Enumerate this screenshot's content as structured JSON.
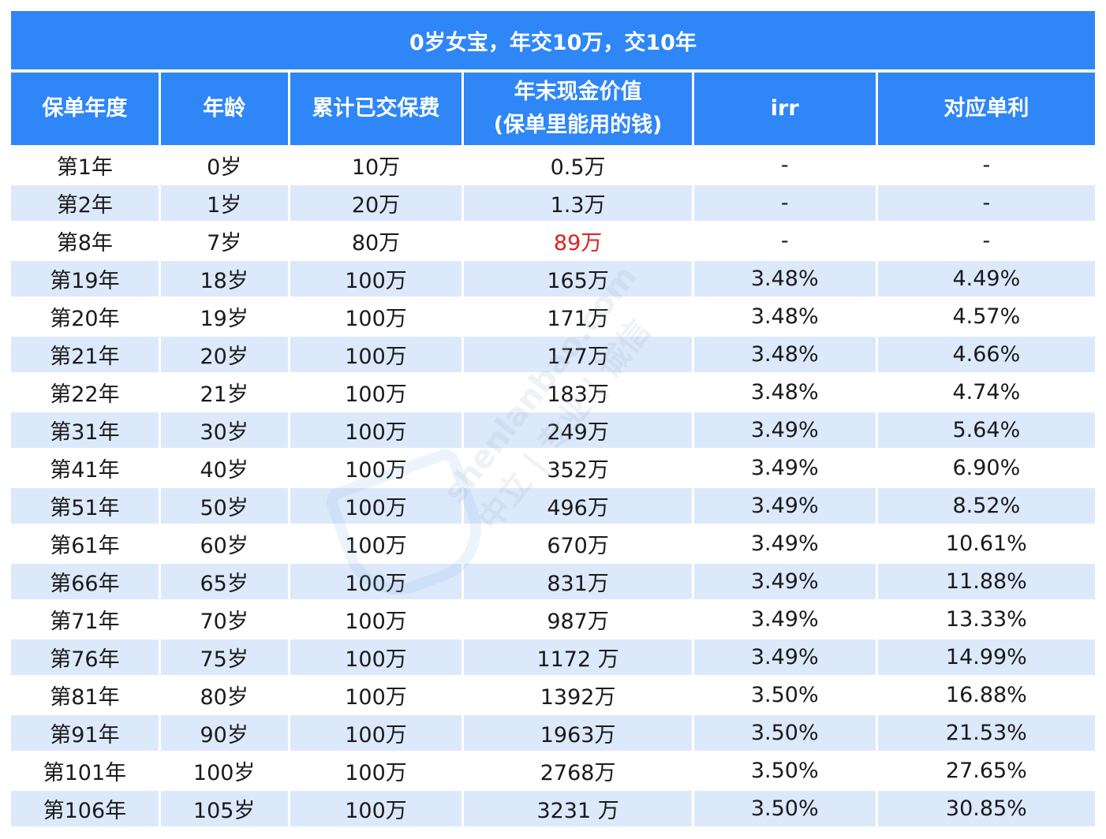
{
  "title": "0岁女宝，年交10万，交10年",
  "headers": {
    "col1": "保单年度",
    "col2": "年龄",
    "col3": "累计已交保费",
    "col4_line1": "年末现金价值",
    "col4_line2": "(保单里能用的钱)",
    "col5": "irr",
    "col6": "对应单利"
  },
  "rows": [
    {
      "year": "第1年",
      "age": "0岁",
      "paid": "10万",
      "cash": "0.5万",
      "irr": "-",
      "simple": "-"
    },
    {
      "year": "第2年",
      "age": "1岁",
      "paid": "20万",
      "cash": "1.3万",
      "irr": "-",
      "simple": "-"
    },
    {
      "year": "第8年",
      "age": "7岁",
      "paid": "80万",
      "cash": "89万",
      "irr": "-",
      "simple": "-"
    },
    {
      "year": "第19年",
      "age": "18岁",
      "paid": "100万",
      "cash": "165万",
      "irr": "3.48%",
      "simple": "4.49%"
    },
    {
      "year": "第20年",
      "age": "19岁",
      "paid": "100万",
      "cash": "171万",
      "irr": "3.48%",
      "simple": "4.57%"
    },
    {
      "year": "第21年",
      "age": "20岁",
      "paid": "100万",
      "cash": "177万",
      "irr": "3.48%",
      "simple": "4.66%"
    },
    {
      "year": "第22年",
      "age": "21岁",
      "paid": "100万",
      "cash": "183万",
      "irr": "3.48%",
      "simple": "4.74%"
    },
    {
      "year": "第31年",
      "age": "30岁",
      "paid": "100万",
      "cash": "249万",
      "irr": "3.49%",
      "simple": "5.64%"
    },
    {
      "year": "第41年",
      "age": "40岁",
      "paid": "100万",
      "cash": "352万",
      "irr": "3.49%",
      "simple": "6.90%"
    },
    {
      "year": "第51年",
      "age": "50岁",
      "paid": "100万",
      "cash": "496万",
      "irr": "3.49%",
      "simple": "8.52%"
    },
    {
      "year": "第61年",
      "age": "60岁",
      "paid": "100万",
      "cash": "670万",
      "irr": "3.49%",
      "simple": "10.61%"
    },
    {
      "year": "第66年",
      "age": "65岁",
      "paid": "100万",
      "cash": "831万",
      "irr": "3.49%",
      "simple": "11.88%"
    },
    {
      "year": "第71年",
      "age": "70岁",
      "paid": "100万",
      "cash": "987万",
      "irr": "3.49%",
      "simple": "13.33%"
    },
    {
      "year": "第76年",
      "age": "75岁",
      "paid": "100万",
      "cash": "1172 万",
      "irr": "3.49%",
      "simple": "14.99%"
    },
    {
      "year": "第81年",
      "age": "80岁",
      "paid": "100万",
      "cash": "1392万",
      "irr": "3.50%",
      "simple": "16.88%"
    },
    {
      "year": "第91年",
      "age": "90岁",
      "paid": "100万",
      "cash": "1963万",
      "irr": "3.50%",
      "simple": "21.53%"
    },
    {
      "year": "第101年",
      "age": "100岁",
      "paid": "100万",
      "cash": "2768万",
      "irr": "3.50%",
      "simple": "27.65%"
    },
    {
      "year": "第106年",
      "age": "105岁",
      "paid": "100万",
      "cash": "3231 万",
      "irr": "3.50%",
      "simple": "30.85%"
    }
  ],
  "highlight_row_index": 2,
  "colors": {
    "header_bg": "#2f86f6",
    "alt_row_bg": "#dce9fb",
    "highlight_text": "#e02020"
  },
  "watermark": {
    "text": "shenlanbao.com  中立 | 专业 | 诚信"
  }
}
